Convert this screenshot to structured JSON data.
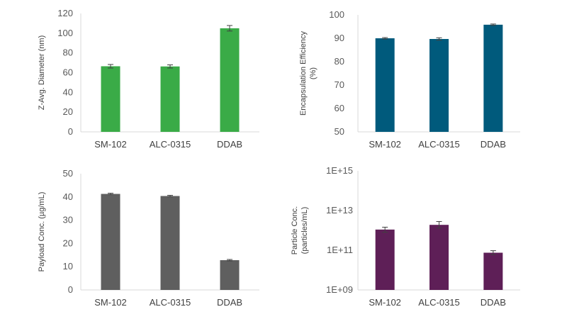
{
  "chart_data": [
    {
      "type": "bar",
      "title": "",
      "categories": [
        "SM-102",
        "ALC-0315",
        "DDAB"
      ],
      "values": [
        66.5,
        66.3,
        105.0
      ],
      "errors": [
        1.8,
        1.6,
        2.8
      ],
      "ylabel": [
        "Z-Avg. Diameter (nm)"
      ],
      "ylim": [
        0,
        120
      ],
      "yticks": [
        0,
        20,
        40,
        60,
        80,
        100,
        120
      ],
      "ytick_labels": [
        "0",
        "20",
        "40",
        "60",
        "80",
        "100",
        "120"
      ],
      "scale": "linear",
      "color": "#3aab47",
      "grid": false
    },
    {
      "type": "bar",
      "title": "",
      "categories": [
        "SM-102",
        "ALC-0315",
        "DDAB"
      ],
      "values": [
        90.0,
        89.7,
        95.8
      ],
      "errors": [
        0.3,
        0.5,
        0.3
      ],
      "ylabel": [
        "Encapsulation Efficiency",
        "(%)"
      ],
      "ylim": [
        50,
        100
      ],
      "yticks": [
        50,
        60,
        70,
        80,
        90,
        100
      ],
      "ytick_labels": [
        "50",
        "60",
        "70",
        "80",
        "90",
        "100"
      ],
      "scale": "linear",
      "color": "#005a7c",
      "grid": false
    },
    {
      "type": "bar",
      "title": "",
      "categories": [
        "SM-102",
        "ALC-0315",
        "DDAB"
      ],
      "values": [
        41.3,
        40.4,
        12.8
      ],
      "errors": [
        0.3,
        0.3,
        0.3
      ],
      "ylabel": [
        "Payload Conc. (µg/mL)"
      ],
      "ylim": [
        0,
        50
      ],
      "yticks": [
        0,
        10,
        20,
        30,
        40,
        50
      ],
      "ytick_labels": [
        "0",
        "10",
        "20",
        "30",
        "40",
        "50"
      ],
      "scale": "linear",
      "color": "#5f5f5f",
      "grid": false
    },
    {
      "type": "bar",
      "title": "",
      "categories": [
        "SM-102",
        "ALC-0315",
        "DDAB"
      ],
      "values": [
        1100000000000.0,
        1900000000000.0,
        75000000000.0
      ],
      "errors_low": [
        300000000000.0,
        600000000000.0,
        15000000000.0
      ],
      "errors_high": [
        350000000000.0,
        900000000000.0,
        20000000000.0
      ],
      "ylabel": [
        "Particle Conc.",
        "(particles/mL)"
      ],
      "ylim": [
        1000000000.0,
        1000000000000000.0
      ],
      "yticks": [
        1000000000.0,
        100000000000.0,
        10000000000000.0,
        1000000000000000.0
      ],
      "ytick_labels": [
        "1E+09",
        "1E+11",
        "1E+13",
        "1E+15"
      ],
      "scale": "log",
      "color": "#5e1f57",
      "grid": false
    }
  ]
}
